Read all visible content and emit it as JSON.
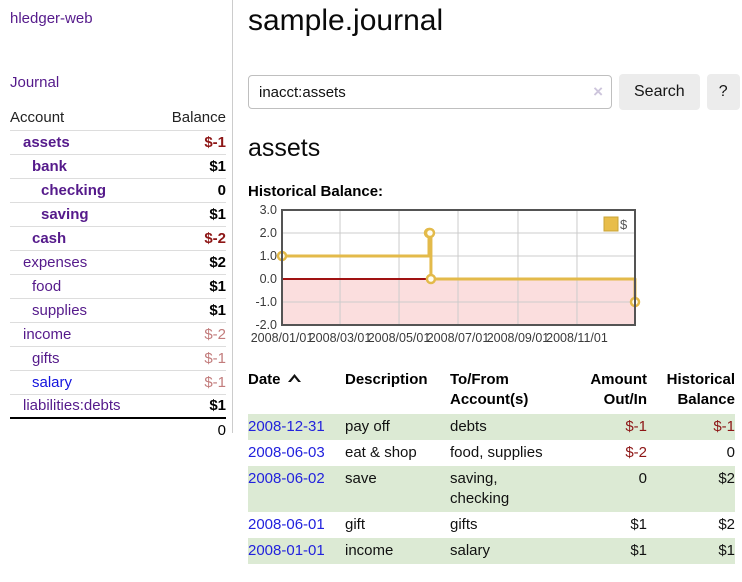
{
  "app": {
    "brand": "hledger-web",
    "nav_journal": "Journal"
  },
  "sidebar": {
    "header": {
      "account": "Account",
      "balance": "Balance"
    },
    "accounts": [
      {
        "name": "assets",
        "balance": "$-1",
        "depth": 1,
        "bold": true,
        "neg": "strong"
      },
      {
        "name": "bank",
        "balance": "$1",
        "depth": 2,
        "bold": true
      },
      {
        "name": "checking",
        "balance": "0",
        "depth": 3,
        "bold": true
      },
      {
        "name": "saving",
        "balance": "$1",
        "depth": 3,
        "bold": true
      },
      {
        "name": "cash",
        "balance": "$-2",
        "depth": 2,
        "bold": true,
        "neg": "strong"
      },
      {
        "name": "expenses",
        "balance": "$2",
        "depth": 1
      },
      {
        "name": "food",
        "balance": "$1",
        "depth": 2
      },
      {
        "name": "supplies",
        "balance": "$1",
        "depth": 2
      },
      {
        "name": "income",
        "balance": "$-2",
        "depth": 1,
        "neg": "soft"
      },
      {
        "name": "gifts",
        "balance": "$-1",
        "depth": 2,
        "neg": "soft"
      },
      {
        "name": "salary",
        "balance": "$-1",
        "depth": 2,
        "neg": "soft",
        "link_color": "blue"
      },
      {
        "name": "liabilities:debts",
        "balance": "$1",
        "depth": 1
      }
    ],
    "total": "0"
  },
  "header": {
    "title": "sample.journal"
  },
  "search": {
    "value": "inacct:assets",
    "clear_label": "×",
    "button_label": "Search",
    "help_label": "?"
  },
  "register": {
    "heading": "assets",
    "chart_label": "Historical Balance:"
  },
  "chart_data": {
    "type": "line",
    "step": true,
    "title": "Historical Balance",
    "series": [
      {
        "name": "$",
        "x": [
          "2008-01-01",
          "2008-06-01",
          "2008-06-02",
          "2008-06-03",
          "2008-12-31"
        ],
        "y": [
          1,
          2,
          2,
          0,
          -1
        ]
      }
    ],
    "xrange": [
      "2008-01-01",
      "2008-12-31"
    ],
    "ylim": [
      -2,
      3
    ],
    "yticks": [
      "3.0",
      "2.0",
      "1.0",
      "0.0",
      "-1.0",
      "-2.0"
    ],
    "ytick_values": [
      3,
      2,
      1,
      0,
      -1,
      -2
    ],
    "xticks": [
      "2008/01/01",
      "2008/03/01",
      "2008/05/01",
      "2008/07/01",
      "2008/09/01",
      "2008/11/01"
    ],
    "xtick_dates": [
      "2008-01-01",
      "2008-03-01",
      "2008-05-01",
      "2008-07-01",
      "2008-09-01",
      "2008-11-01"
    ],
    "grid": true,
    "legend": [
      {
        "label": "$",
        "color": "#e8bd4a"
      }
    ],
    "legend_position": "top-right",
    "colors": {
      "line": "#e3ba4a",
      "marker_fill": "#fffdf2",
      "zero_line": "#a01212",
      "negative_region": "#fbdede",
      "gridline": "#cccccc",
      "border": "#545454",
      "tick_text": "#3a3a3a"
    }
  },
  "table": {
    "headers": [
      {
        "line1": "Date",
        "line2": "",
        "align": "left",
        "sorted": "asc"
      },
      {
        "line1": "Description",
        "line2": "",
        "align": "left"
      },
      {
        "line1": "To/From",
        "line2": "Account(s)",
        "align": "left"
      },
      {
        "line1": "Amount",
        "line2": "Out/In",
        "align": "right"
      },
      {
        "line1": "Historical",
        "line2": "Balance",
        "align": "right"
      }
    ],
    "rows": [
      {
        "date": "2008-12-31",
        "description": "pay off",
        "accounts": [
          "debts"
        ],
        "amount": "$-1",
        "amount_neg": true,
        "balance": "$-1",
        "balance_neg": true,
        "green": true
      },
      {
        "date": "2008-06-03",
        "description": "eat & shop",
        "accounts": [
          "food, supplies"
        ],
        "amount": "$-2",
        "amount_neg": true,
        "balance": "0",
        "balance_neg": false,
        "green": false
      },
      {
        "date": "2008-06-02",
        "description": "save",
        "accounts": [
          "saving,",
          "checking"
        ],
        "amount": "0",
        "amount_neg": false,
        "balance": "$2",
        "balance_neg": false,
        "green": true
      },
      {
        "date": "2008-06-01",
        "description": "gift",
        "accounts": [
          "gifts"
        ],
        "amount": "$1",
        "amount_neg": false,
        "balance": "$2",
        "balance_neg": false,
        "green": false
      },
      {
        "date": "2008-01-01",
        "description": "income",
        "accounts": [
          "salary"
        ],
        "amount": "$1",
        "amount_neg": false,
        "balance": "$1",
        "balance_neg": false,
        "green": true
      }
    ]
  }
}
